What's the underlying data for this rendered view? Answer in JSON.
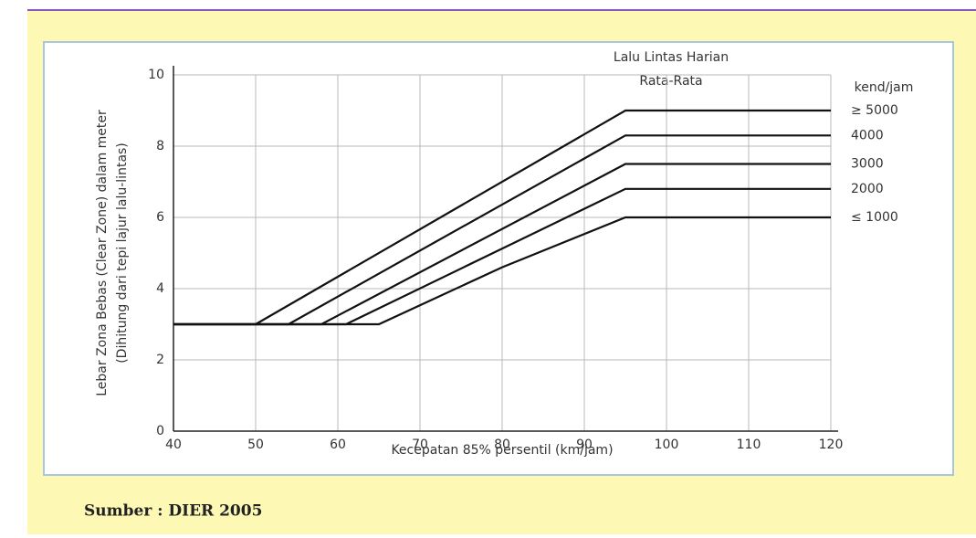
{
  "chart_data": {
    "type": "line",
    "y_label_lines": [
      "Lebar Zona Bebas (Clear Zone) dalam meter",
      "(Dihitung dari tepi lajur lalu-lintas)"
    ],
    "x_label": "Kecepatan 85% persentil (km/jam)",
    "legend_title_lines": [
      "Lalu Lintas Harian",
      "Rata-Rata"
    ],
    "legend_unit": "kend/jam",
    "xlim": [
      40,
      120
    ],
    "xticks": [
      40,
      50,
      60,
      70,
      80,
      90,
      100,
      110,
      120
    ],
    "ylim": [
      0,
      10
    ],
    "yticks": [
      0,
      2,
      4,
      6,
      8,
      10
    ],
    "grid": true,
    "series": [
      {
        "name": "≥ 5000",
        "color": "#111111",
        "x": [
          40,
          50,
          95,
          120
        ],
        "values": [
          3,
          3,
          9,
          9
        ]
      },
      {
        "name": "4000",
        "color": "#111111",
        "x": [
          40,
          54,
          95,
          120
        ],
        "values": [
          3,
          3,
          8.3,
          8.3
        ]
      },
      {
        "name": "3000",
        "color": "#111111",
        "x": [
          40,
          58,
          95,
          120
        ],
        "values": [
          3,
          3,
          7.5,
          7.5
        ]
      },
      {
        "name": "2000",
        "color": "#111111",
        "x": [
          40,
          61,
          95,
          120
        ],
        "values": [
          3,
          3,
          6.8,
          6.8
        ]
      },
      {
        "name": "≤ 1000",
        "color": "#111111",
        "x": [
          40,
          65,
          80,
          95,
          120
        ],
        "values": [
          3,
          3,
          4.6,
          6,
          6
        ]
      }
    ],
    "source": "Sumber : DIER 2005"
  }
}
